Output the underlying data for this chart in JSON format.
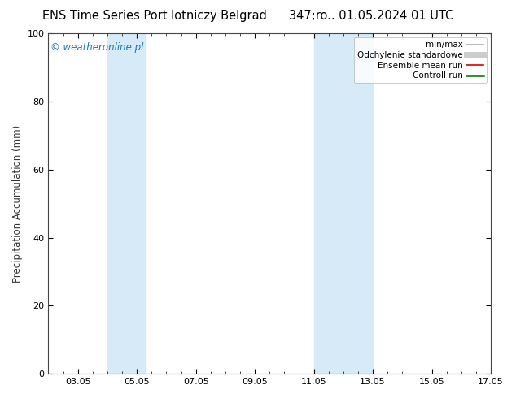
{
  "title_left": "ENS Time Series Port lotniczy Belgrad",
  "title_right": "347;ro.. 01.05.2024 01 UTC",
  "ylabel": "Precipitation Accumulation (mm)",
  "watermark": "© weatheronline.pl",
  "ylim": [
    0,
    100
  ],
  "yticks": [
    0,
    20,
    40,
    60,
    80,
    100
  ],
  "xlim": [
    0,
    15
  ],
  "xtick_labels": [
    "03.05",
    "05.05",
    "07.05",
    "09.05",
    "11.05",
    "13.05",
    "15.05",
    "17.05"
  ],
  "xtick_positions": [
    1,
    3,
    5,
    7,
    9,
    11,
    13,
    15
  ],
  "shaded_bands": [
    {
      "x_start": 2.0,
      "x_end": 3.3
    },
    {
      "x_start": 9.0,
      "x_end": 11.0
    }
  ],
  "shade_color": "#d6eaf8",
  "background_color": "#ffffff",
  "legend_items": [
    {
      "label": "min/max",
      "color": "#aaaaaa",
      "lw": 1.2
    },
    {
      "label": "Odchylenie standardowe",
      "color": "#cccccc",
      "lw": 5
    },
    {
      "label": "Ensemble mean run",
      "color": "#dd0000",
      "lw": 1.2
    },
    {
      "label": "Controll run",
      "color": "#006600",
      "lw": 1.8
    }
  ],
  "watermark_color": "#1a75bc",
  "title_fontsize": 10.5,
  "ylabel_fontsize": 8.5,
  "tick_fontsize": 8,
  "watermark_fontsize": 8.5,
  "legend_fontsize": 7.5
}
